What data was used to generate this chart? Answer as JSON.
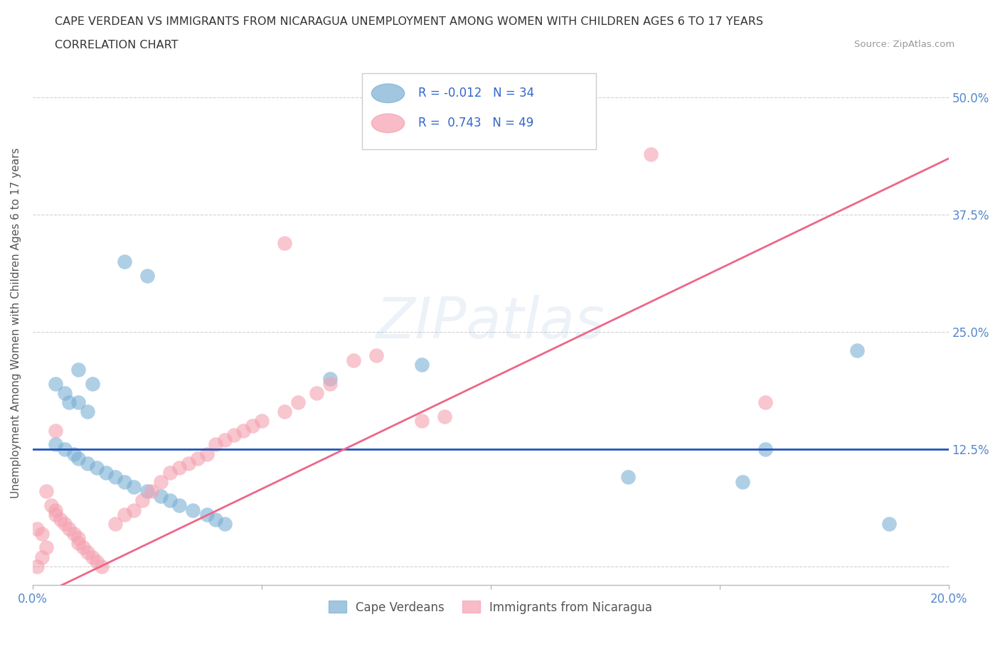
{
  "title_line1": "CAPE VERDEAN VS IMMIGRANTS FROM NICARAGUA UNEMPLOYMENT AMONG WOMEN WITH CHILDREN AGES 6 TO 17 YEARS",
  "title_line2": "CORRELATION CHART",
  "source_text": "Source: ZipAtlas.com",
  "ylabel": "Unemployment Among Women with Children Ages 6 to 17 years",
  "xlim": [
    0.0,
    0.2
  ],
  "ylim": [
    -0.02,
    0.54
  ],
  "xticks": [
    0.0,
    0.05,
    0.1,
    0.15,
    0.2
  ],
  "xtick_labels": [
    "0.0%",
    "",
    "",
    "",
    "20.0%"
  ],
  "yticks": [
    0.0,
    0.125,
    0.25,
    0.375,
    0.5
  ],
  "ytick_labels_right": [
    "",
    "12.5%",
    "25.0%",
    "37.5%",
    "50.0%"
  ],
  "blue_color": "#7BAFD4",
  "pink_color": "#F4A0B0",
  "blue_line_color": "#2255BB",
  "pink_line_color": "#EE6688",
  "blue_R": -0.012,
  "blue_N": 34,
  "pink_R": 0.743,
  "pink_N": 49,
  "blue_line_y": 0.125,
  "pink_line_slope": 2.35,
  "pink_line_intercept": -0.035,
  "watermark": "ZIPatlas",
  "watermark_color": "#99BBDD",
  "legend_label_blue": "Cape Verdeans",
  "legend_label_pink": "Immigrants from Nicaragua",
  "blue_scatter": [
    [
      0.02,
      0.325
    ],
    [
      0.025,
      0.31
    ],
    [
      0.01,
      0.21
    ],
    [
      0.013,
      0.195
    ],
    [
      0.005,
      0.195
    ],
    [
      0.007,
      0.185
    ],
    [
      0.008,
      0.175
    ],
    [
      0.01,
      0.175
    ],
    [
      0.012,
      0.165
    ],
    [
      0.005,
      0.13
    ],
    [
      0.007,
      0.125
    ],
    [
      0.009,
      0.12
    ],
    [
      0.01,
      0.115
    ],
    [
      0.012,
      0.11
    ],
    [
      0.014,
      0.105
    ],
    [
      0.016,
      0.1
    ],
    [
      0.018,
      0.095
    ],
    [
      0.02,
      0.09
    ],
    [
      0.022,
      0.085
    ],
    [
      0.025,
      0.08
    ],
    [
      0.028,
      0.075
    ],
    [
      0.03,
      0.07
    ],
    [
      0.032,
      0.065
    ],
    [
      0.035,
      0.06
    ],
    [
      0.038,
      0.055
    ],
    [
      0.04,
      0.05
    ],
    [
      0.042,
      0.045
    ],
    [
      0.065,
      0.2
    ],
    [
      0.085,
      0.215
    ],
    [
      0.13,
      0.095
    ],
    [
      0.155,
      0.09
    ],
    [
      0.16,
      0.125
    ],
    [
      0.18,
      0.23
    ],
    [
      0.187,
      0.045
    ]
  ],
  "pink_scatter": [
    [
      0.001,
      0.04
    ],
    [
      0.002,
      0.035
    ],
    [
      0.003,
      0.08
    ],
    [
      0.004,
      0.065
    ],
    [
      0.005,
      0.06
    ],
    [
      0.005,
      0.055
    ],
    [
      0.006,
      0.05
    ],
    [
      0.007,
      0.045
    ],
    [
      0.008,
      0.04
    ],
    [
      0.009,
      0.035
    ],
    [
      0.01,
      0.03
    ],
    [
      0.01,
      0.025
    ],
    [
      0.011,
      0.02
    ],
    [
      0.012,
      0.015
    ],
    [
      0.013,
      0.01
    ],
    [
      0.014,
      0.005
    ],
    [
      0.015,
      0.0
    ],
    [
      0.001,
      0.0
    ],
    [
      0.002,
      0.01
    ],
    [
      0.003,
      0.02
    ],
    [
      0.018,
      0.045
    ],
    [
      0.02,
      0.055
    ],
    [
      0.022,
      0.06
    ],
    [
      0.024,
      0.07
    ],
    [
      0.026,
      0.08
    ],
    [
      0.028,
      0.09
    ],
    [
      0.03,
      0.1
    ],
    [
      0.032,
      0.105
    ],
    [
      0.034,
      0.11
    ],
    [
      0.036,
      0.115
    ],
    [
      0.038,
      0.12
    ],
    [
      0.04,
      0.13
    ],
    [
      0.042,
      0.135
    ],
    [
      0.044,
      0.14
    ],
    [
      0.046,
      0.145
    ],
    [
      0.048,
      0.15
    ],
    [
      0.05,
      0.155
    ],
    [
      0.055,
      0.165
    ],
    [
      0.058,
      0.175
    ],
    [
      0.062,
      0.185
    ],
    [
      0.065,
      0.195
    ],
    [
      0.07,
      0.22
    ],
    [
      0.075,
      0.225
    ],
    [
      0.055,
      0.345
    ],
    [
      0.135,
      0.44
    ],
    [
      0.085,
      0.155
    ],
    [
      0.09,
      0.16
    ],
    [
      0.005,
      0.145
    ],
    [
      0.16,
      0.175
    ]
  ]
}
